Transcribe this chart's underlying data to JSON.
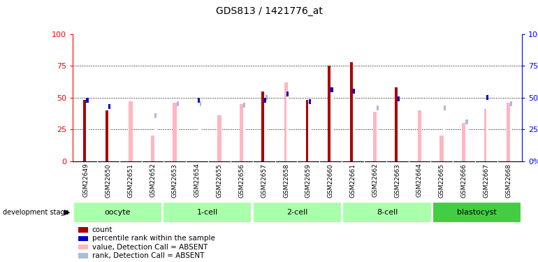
{
  "title": "GDS813 / 1421776_at",
  "samples": [
    "GSM22649",
    "GSM22650",
    "GSM22651",
    "GSM22652",
    "GSM22653",
    "GSM22654",
    "GSM22655",
    "GSM22656",
    "GSM22657",
    "GSM22658",
    "GSM22659",
    "GSM22660",
    "GSM22661",
    "GSM22662",
    "GSM22663",
    "GSM22664",
    "GSM22665",
    "GSM22666",
    "GSM22667",
    "GSM22668"
  ],
  "count_values": [
    48,
    40,
    0,
    0,
    0,
    0,
    0,
    0,
    55,
    0,
    48,
    75,
    78,
    0,
    58,
    0,
    0,
    0,
    0,
    0
  ],
  "rank_values": [
    50,
    45,
    0,
    0,
    0,
    50,
    0,
    0,
    50,
    55,
    49,
    58,
    57,
    0,
    51,
    0,
    0,
    0,
    52,
    0
  ],
  "absent_value_values": [
    0,
    0,
    47,
    20,
    46,
    0,
    36,
    45,
    0,
    62,
    0,
    0,
    0,
    39,
    0,
    40,
    20,
    30,
    41,
    46
  ],
  "absent_rank_values": [
    0,
    0,
    0,
    38,
    47,
    47,
    0,
    46,
    52,
    0,
    0,
    0,
    0,
    44,
    0,
    0,
    44,
    33,
    0,
    47
  ],
  "stages": [
    {
      "name": "oocyte",
      "start": 0,
      "end": 4,
      "color": "#AAFFAA"
    },
    {
      "name": "1-cell",
      "start": 4,
      "end": 8,
      "color": "#AAFFAA"
    },
    {
      "name": "2-cell",
      "start": 8,
      "end": 12,
      "color": "#AAFFAA"
    },
    {
      "name": "8-cell",
      "start": 12,
      "end": 16,
      "color": "#AAFFAA"
    },
    {
      "name": "blastocyst",
      "start": 16,
      "end": 20,
      "color": "#44CC44"
    }
  ],
  "count_color": "#AA0000",
  "rank_color": "#0000CC",
  "absent_value_color": "#FFB6C1",
  "absent_rank_color": "#AABBDD",
  "ylim": [
    0,
    100
  ],
  "yticks": [
    0,
    25,
    50,
    75,
    100
  ],
  "background_color": "#FFFFFF"
}
